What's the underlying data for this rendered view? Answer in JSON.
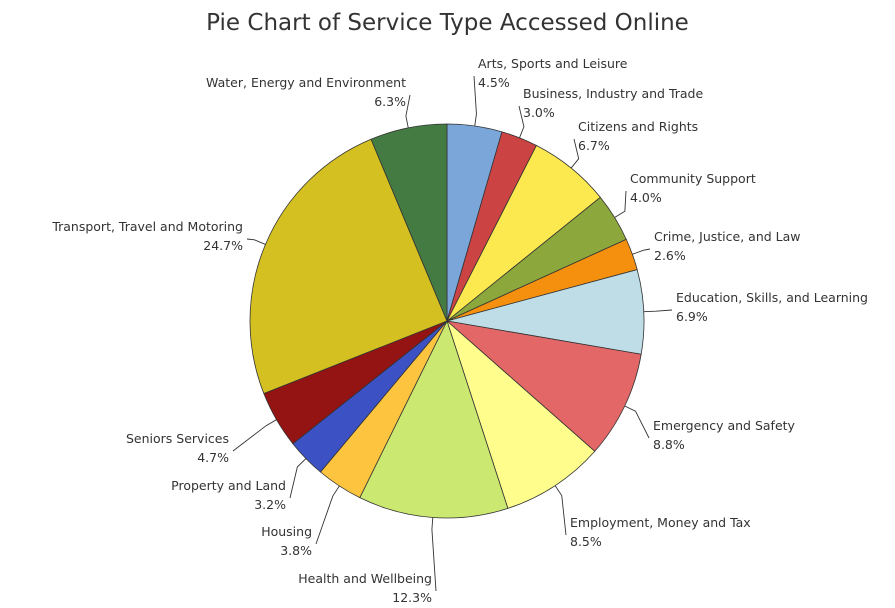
{
  "chart_data": {
    "type": "pie",
    "title": "Pie Chart of Service Type Accessed Online",
    "slices": [
      {
        "label": "Arts, Sports and Leisure",
        "pct_label": "4.5%",
        "value": 4.5,
        "color": "#7AA6DA"
      },
      {
        "label": "Business, Industry and Trade",
        "pct_label": "3.0%",
        "value": 3.0,
        "color": "#CC4343"
      },
      {
        "label": "Citizens and Rights",
        "pct_label": "6.7%",
        "value": 6.7,
        "color": "#FCE94F"
      },
      {
        "label": "Community Support",
        "pct_label": "4.0%",
        "value": 4.0,
        "color": "#8CA73B"
      },
      {
        "label": "Crime, Justice, and Law",
        "pct_label": "2.6%",
        "value": 2.6,
        "color": "#F5900E"
      },
      {
        "label": "Education, Skills, and Learning",
        "pct_label": "6.9%",
        "value": 6.9,
        "color": "#BFDDE7"
      },
      {
        "label": "Emergency and Safety",
        "pct_label": "8.8%",
        "value": 8.8,
        "color": "#E46767"
      },
      {
        "label": "Employment, Money and Tax",
        "pct_label": "8.5%",
        "value": 8.5,
        "color": "#FFFE8C"
      },
      {
        "label": "Health and Wellbeing",
        "pct_label": "12.3%",
        "value": 12.3,
        "color": "#CBE870"
      },
      {
        "label": "Housing",
        "pct_label": "3.8%",
        "value": 3.8,
        "color": "#FDC53F"
      },
      {
        "label": "Property and Land",
        "pct_label": "3.2%",
        "value": 3.2,
        "color": "#3C52C4"
      },
      {
        "label": "Seniors Services",
        "pct_label": "4.7%",
        "value": 4.7,
        "color": "#941313"
      },
      {
        "label": "Transport, Travel and Motoring",
        "pct_label": "24.7%",
        "value": 24.7,
        "color": "#D4C020"
      },
      {
        "label": "Water, Energy and Environment",
        "pct_label": "6.3%",
        "value": 6.3,
        "color": "#447B43"
      }
    ]
  }
}
